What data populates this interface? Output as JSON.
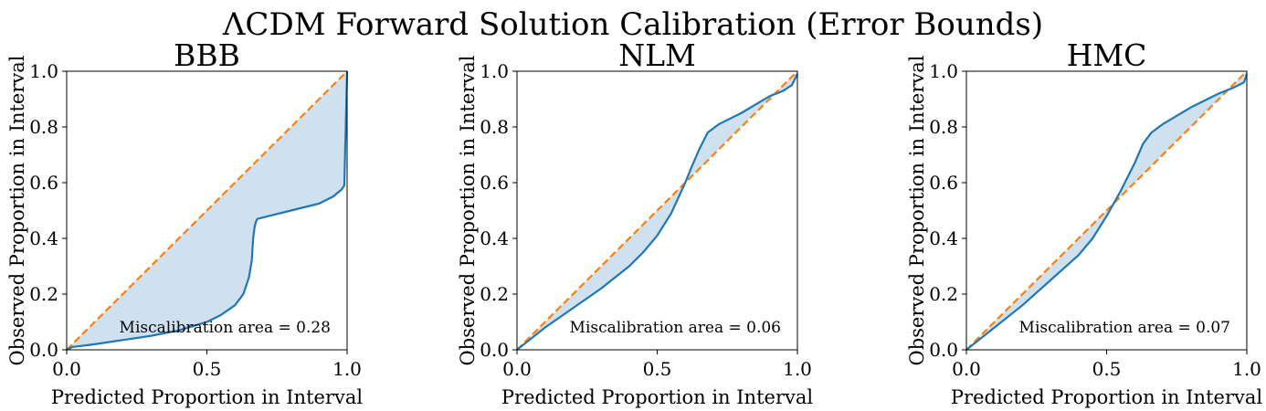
{
  "figure": {
    "title": "ΛCDM Forward Solution Calibration (Error Bounds)"
  },
  "colors": {
    "calibration_curve": "#1f77b4",
    "ideal_line": "#ff7f0e",
    "fill": "#cfe1ef"
  },
  "chart_data": [
    {
      "type": "line",
      "title": "BBB",
      "xlabel": "Predicted Proportion in Interval",
      "ylabel": "Observed Proportion in Interval",
      "xlim": [
        0,
        1
      ],
      "ylim": [
        0,
        1
      ],
      "xticks": [
        "0.0",
        "0.5",
        "1.0"
      ],
      "yticks": [
        "0.0",
        "0.2",
        "0.4",
        "0.6",
        "0.8",
        "1.0"
      ],
      "annotation": "Miscalibration area = 0.28",
      "series": [
        {
          "x": [
            0,
            0.02,
            0.1,
            0.2,
            0.3,
            0.4,
            0.5,
            0.55,
            0.6,
            0.63,
            0.65,
            0.66,
            0.665,
            0.67,
            0.675,
            0.68,
            0.72,
            0.8,
            0.9,
            0.95,
            0.98,
            0.99,
            1.0
          ],
          "y": [
            0,
            0.01,
            0.02,
            0.035,
            0.05,
            0.07,
            0.1,
            0.125,
            0.16,
            0.2,
            0.26,
            0.32,
            0.4,
            0.44,
            0.46,
            0.47,
            0.48,
            0.5,
            0.525,
            0.55,
            0.575,
            0.59,
            1.0
          ]
        },
        {
          "x": [
            0,
            1
          ],
          "y": [
            0,
            1
          ]
        }
      ]
    },
    {
      "type": "line",
      "title": "NLM",
      "xlabel": "Predicted Proportion in Interval",
      "ylabel": "Observed Proportion in Interval",
      "xlim": [
        0,
        1
      ],
      "ylim": [
        0,
        1
      ],
      "xticks": [
        "0.0",
        "0.5",
        "1.0"
      ],
      "yticks": [
        "0.0",
        "0.2",
        "0.4",
        "0.6",
        "0.8",
        "1.0"
      ],
      "annotation": "Miscalibration area = 0.06",
      "series": [
        {
          "x": [
            0,
            0.05,
            0.1,
            0.2,
            0.3,
            0.4,
            0.45,
            0.5,
            0.55,
            0.6,
            0.62,
            0.65,
            0.68,
            0.72,
            0.8,
            0.9,
            0.95,
            0.98,
            1.0
          ],
          "y": [
            0,
            0.04,
            0.08,
            0.15,
            0.22,
            0.3,
            0.35,
            0.41,
            0.49,
            0.6,
            0.65,
            0.72,
            0.78,
            0.81,
            0.85,
            0.91,
            0.93,
            0.95,
            0.99
          ]
        },
        {
          "x": [
            0,
            1
          ],
          "y": [
            0,
            1
          ]
        }
      ]
    },
    {
      "type": "line",
      "title": "HMC",
      "xlabel": "Predicted Proportion in Interval",
      "ylabel": "Observed Proportion in Interval",
      "xlim": [
        0,
        1
      ],
      "ylim": [
        0,
        1
      ],
      "xticks": [
        "0.0",
        "0.5",
        "1.0"
      ],
      "yticks": [
        "0.0",
        "0.2",
        "0.4",
        "0.6",
        "0.8",
        "1.0"
      ],
      "annotation": "Miscalibration area = 0.07",
      "series": [
        {
          "x": [
            0,
            0.05,
            0.1,
            0.2,
            0.3,
            0.4,
            0.45,
            0.5,
            0.55,
            0.6,
            0.63,
            0.66,
            0.7,
            0.8,
            0.9,
            0.95,
            0.98,
            0.99,
            1.0
          ],
          "y": [
            0,
            0.04,
            0.08,
            0.16,
            0.25,
            0.34,
            0.4,
            0.48,
            0.57,
            0.67,
            0.74,
            0.78,
            0.81,
            0.87,
            0.92,
            0.94,
            0.955,
            0.96,
            0.99
          ]
        },
        {
          "x": [
            0,
            1
          ],
          "y": [
            0,
            1
          ]
        }
      ]
    }
  ]
}
